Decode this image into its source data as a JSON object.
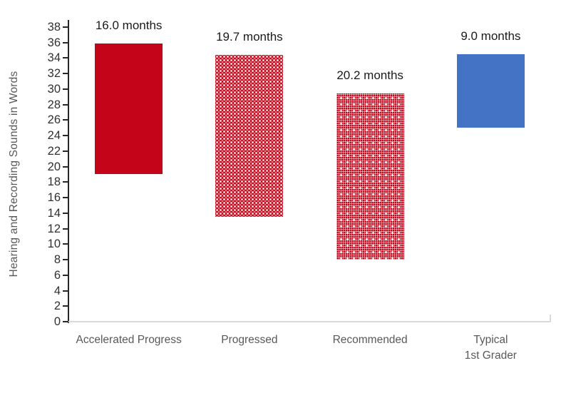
{
  "chart_data": {
    "type": "bar",
    "subtype": "floating-range-bars",
    "title": "",
    "xlabel": "",
    "ylabel": "Hearing and Recording Sounds in Words",
    "ylim": [
      0,
      38
    ],
    "ytick_step": 2,
    "yticks": [
      0,
      2,
      4,
      6,
      8,
      10,
      12,
      14,
      16,
      18,
      20,
      22,
      24,
      26,
      28,
      30,
      32,
      34,
      36,
      38
    ],
    "grid": false,
    "legend": "none",
    "categories": [
      "Accelerated Progress",
      "Progressed",
      "Recommended",
      "Typical\n1st Grader"
    ],
    "bars": [
      {
        "category": "Accelerated Progress",
        "label": "16.0 months",
        "from": 19.0,
        "to": 35.9,
        "pattern": "solid",
        "color": "#C40519"
      },
      {
        "category": "Progressed",
        "label": "19.7 months",
        "from": 13.5,
        "to": 34.4,
        "pattern": "dots",
        "color": "#C40519"
      },
      {
        "category": "Recommended",
        "label": "20.2 months",
        "from": 8.0,
        "to": 29.4,
        "pattern": "weave",
        "color": "#C40519"
      },
      {
        "category": "Typical\n1st Grader",
        "label": "9.0 months",
        "from": 25.0,
        "to": 34.5,
        "pattern": "solid",
        "color": "#4472C4"
      }
    ],
    "colors": {
      "red_fill": "#C40519",
      "blue_fill": "#4472C4",
      "value_axis_line": "#262626",
      "category_axis_line": "#D9D9D9",
      "tick_label": "#303030",
      "category_label": "#595959",
      "axis_title": "#595959",
      "data_label": "#1A1A1A",
      "background": "#FFFFFF"
    }
  }
}
